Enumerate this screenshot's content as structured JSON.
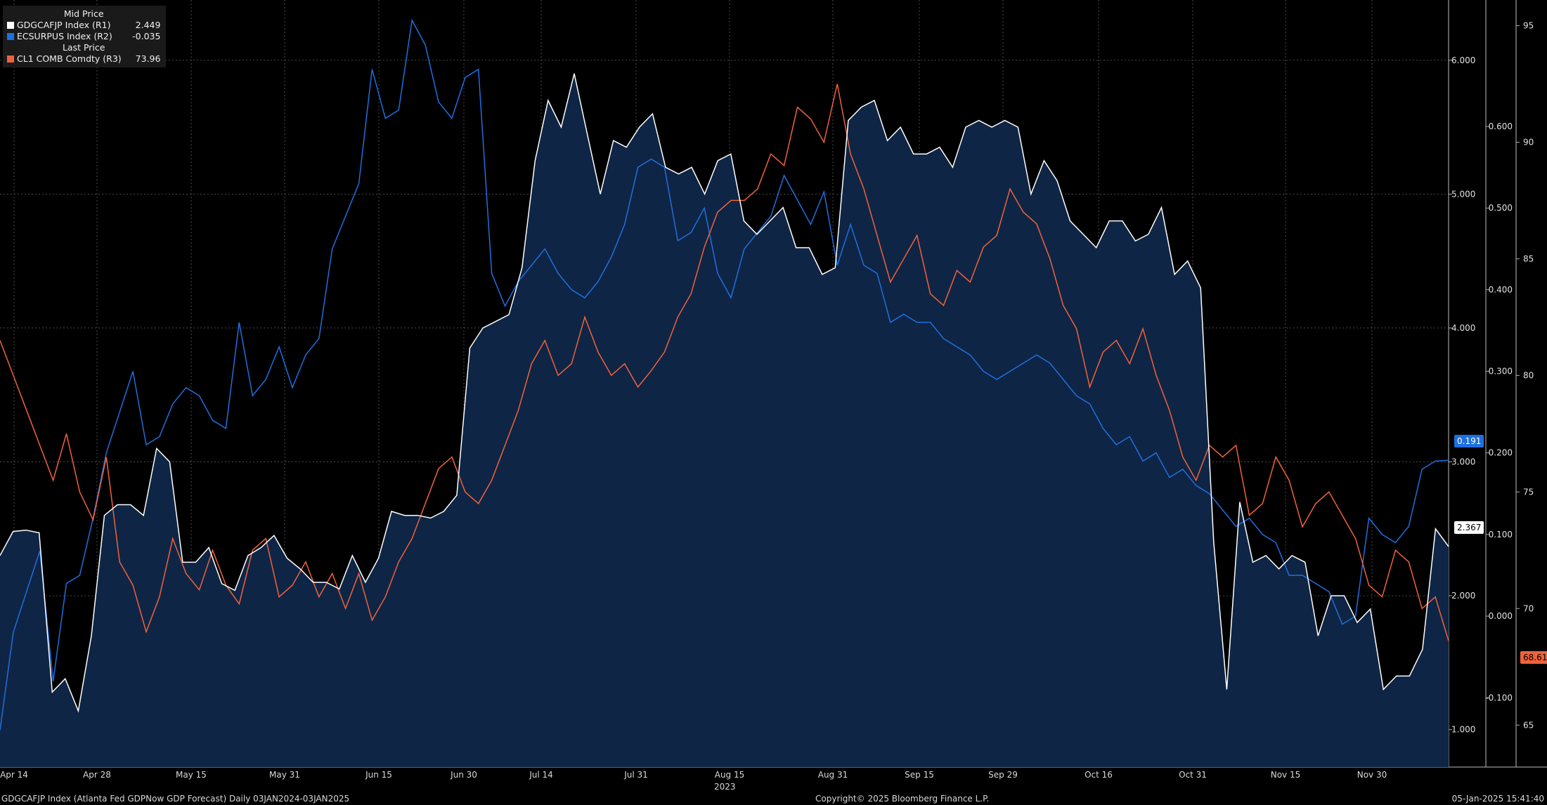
{
  "legend": {
    "header_mid": "Mid Price",
    "header_last": "Last Price",
    "items": [
      {
        "label": "GDGCAFJP Index  (R1)",
        "value": "2.449",
        "color": "#ffffff"
      },
      {
        "label": "ECSURPUS Index  (R2)",
        "value": "-0.035",
        "color": "#1f6fe0"
      },
      {
        "label": "CL1 COMB Comdty  (R3)",
        "value": "73.96",
        "color": "#f0623a"
      }
    ]
  },
  "footer": {
    "left": "GDGCAFJP Index (Atlanta Fed GDPNow GDP Forecast)  Daily 03JAN2024-03JAN2025",
    "center": "Copyright© 2025 Bloomberg Finance L.P.",
    "right": "05-Jan-2025 15:41:40"
  },
  "year_label": "2023",
  "last_tags": {
    "r1": "2.367",
    "r2": "0.191",
    "r3": "68.61"
  },
  "chart_data": {
    "type": "line",
    "x_ticks": [
      "Apr 14",
      "Apr 28",
      "May 15",
      "May 31",
      "Jun 15",
      "Jun 30",
      "Jul 14",
      "Jul 31",
      "Aug 15",
      "Aug 31",
      "Sep 15",
      "Sep 29",
      "Oct 16",
      "Oct 31",
      "Nov 15",
      "Nov 30"
    ],
    "axes": {
      "r1": {
        "ticks": [
          "1.000",
          "2.000",
          "3.000",
          "4.000",
          "5.000",
          "6.000"
        ],
        "range": [
          0.72,
          6.45
        ]
      },
      "r2": {
        "ticks": [
          "-0.100",
          "0.000",
          "0.100",
          "0.200",
          "0.300",
          "0.400",
          "0.500",
          "0.600"
        ],
        "range": [
          -0.185,
          0.755
        ]
      },
      "r3": {
        "ticks": [
          "65",
          "70",
          "75",
          "80",
          "85",
          "90",
          "95"
        ],
        "range": [
          63.2,
          96.1
        ]
      }
    },
    "series": [
      {
        "name": "GDGCAFJP Index (R1)",
        "axis": "r1",
        "color": "#ffffff",
        "fill": "#0f2545",
        "values": [
          2.3,
          2.48,
          2.49,
          2.47,
          1.28,
          1.38,
          1.14,
          1.7,
          2.6,
          2.68,
          2.68,
          2.6,
          3.1,
          3.0,
          2.25,
          2.25,
          2.36,
          2.09,
          2.04,
          2.3,
          2.36,
          2.45,
          2.28,
          2.2,
          2.1,
          2.1,
          2.05,
          2.3,
          2.1,
          2.28,
          2.63,
          2.6,
          2.6,
          2.58,
          2.63,
          2.75,
          3.85,
          4.0,
          4.05,
          4.1,
          4.45,
          5.25,
          5.7,
          5.5,
          5.9,
          5.45,
          5.0,
          5.4,
          5.35,
          5.5,
          5.6,
          5.2,
          5.15,
          5.2,
          5.0,
          5.25,
          5.3,
          4.8,
          4.7,
          4.8,
          4.9,
          4.6,
          4.6,
          4.4,
          4.45,
          5.55,
          5.65,
          5.7,
          5.4,
          5.5,
          5.3,
          5.3,
          5.35,
          5.2,
          5.5,
          5.55,
          5.5,
          5.55,
          5.5,
          5.0,
          5.25,
          5.1,
          4.8,
          4.7,
          4.6,
          4.8,
          4.8,
          4.65,
          4.7,
          4.9,
          4.4,
          4.5,
          4.3,
          2.4,
          1.3,
          2.7,
          2.25,
          2.3,
          2.2,
          2.3,
          2.25,
          1.7,
          2.0,
          2.0,
          1.8,
          1.9,
          1.3,
          1.4,
          1.4,
          1.6,
          2.5,
          2.367
        ]
      },
      {
        "name": "ECSURPUS Index (R2)",
        "axis": "r2",
        "color": "#1f6fe0",
        "values": [
          -0.14,
          -0.02,
          0.03,
          0.08,
          -0.08,
          0.04,
          0.05,
          0.12,
          0.2,
          0.25,
          0.3,
          0.21,
          0.22,
          0.26,
          0.28,
          0.27,
          0.24,
          0.23,
          0.36,
          0.27,
          0.29,
          0.33,
          0.28,
          0.32,
          0.34,
          0.45,
          0.49,
          0.53,
          0.67,
          0.61,
          0.62,
          0.73,
          0.7,
          0.63,
          0.61,
          0.66,
          0.67,
          0.42,
          0.38,
          0.41,
          0.43,
          0.45,
          0.42,
          0.4,
          0.39,
          0.41,
          0.44,
          0.48,
          0.55,
          0.56,
          0.55,
          0.46,
          0.47,
          0.5,
          0.42,
          0.39,
          0.45,
          0.47,
          0.49,
          0.54,
          0.51,
          0.48,
          0.52,
          0.43,
          0.48,
          0.43,
          0.42,
          0.36,
          0.37,
          0.36,
          0.36,
          0.34,
          0.33,
          0.32,
          0.3,
          0.29,
          0.3,
          0.31,
          0.32,
          0.31,
          0.29,
          0.27,
          0.26,
          0.23,
          0.21,
          0.22,
          0.19,
          0.2,
          0.17,
          0.18,
          0.16,
          0.15,
          0.13,
          0.11,
          0.12,
          0.1,
          0.09,
          0.05,
          0.05,
          0.04,
          0.03,
          -0.01,
          0.0,
          0.12,
          0.1,
          0.09,
          0.11,
          0.18,
          0.19,
          0.191
        ]
      },
      {
        "name": "CL1 COMB Comdty (R3)",
        "axis": "r3",
        "color": "#f0623a",
        "values": [
          81.5,
          80.0,
          78.5,
          77.0,
          75.5,
          77.5,
          75.0,
          73.8,
          76.5,
          72.0,
          71.0,
          69.0,
          70.5,
          73.0,
          71.5,
          70.8,
          72.5,
          71.0,
          70.2,
          72.5,
          73.0,
          70.5,
          71.0,
          72.0,
          70.5,
          71.5,
          70.0,
          71.5,
          69.5,
          70.5,
          72.0,
          73.0,
          74.5,
          76.0,
          76.5,
          75.0,
          74.5,
          75.5,
          77.0,
          78.5,
          80.5,
          81.5,
          80.0,
          80.5,
          82.5,
          81.0,
          80.0,
          80.5,
          79.5,
          80.2,
          81.0,
          82.5,
          83.5,
          85.5,
          87.0,
          87.5,
          87.5,
          88.0,
          89.5,
          89.0,
          91.5,
          91.0,
          90.0,
          92.5,
          89.5,
          88.0,
          86.0,
          84.0,
          85.0,
          86.0,
          83.5,
          83.0,
          84.5,
          84.0,
          85.5,
          86.0,
          88.0,
          87.0,
          86.5,
          85.0,
          83.0,
          82.0,
          79.5,
          81.0,
          81.5,
          80.5,
          82.0,
          80.0,
          78.5,
          76.5,
          75.5,
          77.0,
          76.5,
          77.0,
          74.0,
          74.5,
          76.5,
          75.5,
          73.5,
          74.5,
          75.0,
          74.0,
          73.0,
          71.0,
          70.5,
          72.5,
          72.0,
          70.0,
          70.5,
          68.61
        ]
      }
    ]
  }
}
